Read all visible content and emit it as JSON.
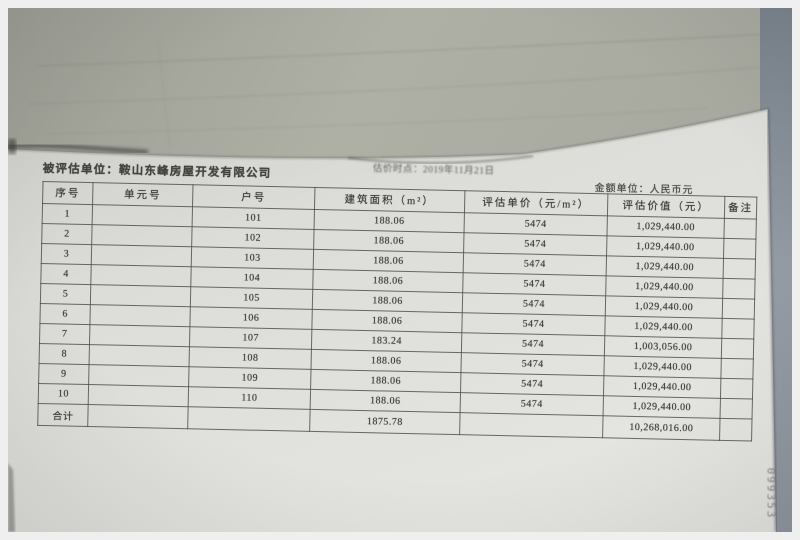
{
  "document": {
    "appraised_entity_line": "被评估单位：鞍山东峰房屋开发有限公司",
    "valuation_date_note": "估价时点：2019年11月21日",
    "currency_note": "金额单位：人民币元",
    "stamp_number": "099353"
  },
  "table": {
    "headers": [
      "序号",
      "单元号",
      "户号",
      "建筑面积（m²）",
      "评估单价（元/m²）",
      "评估价值（元）",
      "备注"
    ],
    "rows": [
      [
        "1",
        "",
        "101",
        "188.06",
        "5474",
        "1,029,440.00",
        ""
      ],
      [
        "2",
        "",
        "102",
        "188.06",
        "5474",
        "1,029,440.00",
        ""
      ],
      [
        "3",
        "",
        "103",
        "188.06",
        "5474",
        "1,029,440.00",
        ""
      ],
      [
        "4",
        "",
        "104",
        "188.06",
        "5474",
        "1,029,440.00",
        ""
      ],
      [
        "5",
        "",
        "105",
        "188.06",
        "5474",
        "1,029,440.00",
        ""
      ],
      [
        "6",
        "",
        "106",
        "188.06",
        "5474",
        "1,029,440.00",
        ""
      ],
      [
        "7",
        "",
        "107",
        "183.24",
        "5474",
        "1,003,056.00",
        ""
      ],
      [
        "8",
        "",
        "108",
        "188.06",
        "5474",
        "1,029,440.00",
        ""
      ],
      [
        "9",
        "",
        "109",
        "188.06",
        "5474",
        "1,029,440.00",
        ""
      ],
      [
        "10",
        "",
        "110",
        "188.06",
        "5474",
        "1,029,440.00",
        ""
      ]
    ],
    "total_row": [
      "合计",
      "",
      "",
      "1875.78",
      "",
      "10,268,016.00",
      ""
    ]
  },
  "colors": {
    "paper": "#e0e0dc",
    "pages_background": "#a9aba1",
    "desk": "#8d959e",
    "ink": "#3e3d38"
  }
}
